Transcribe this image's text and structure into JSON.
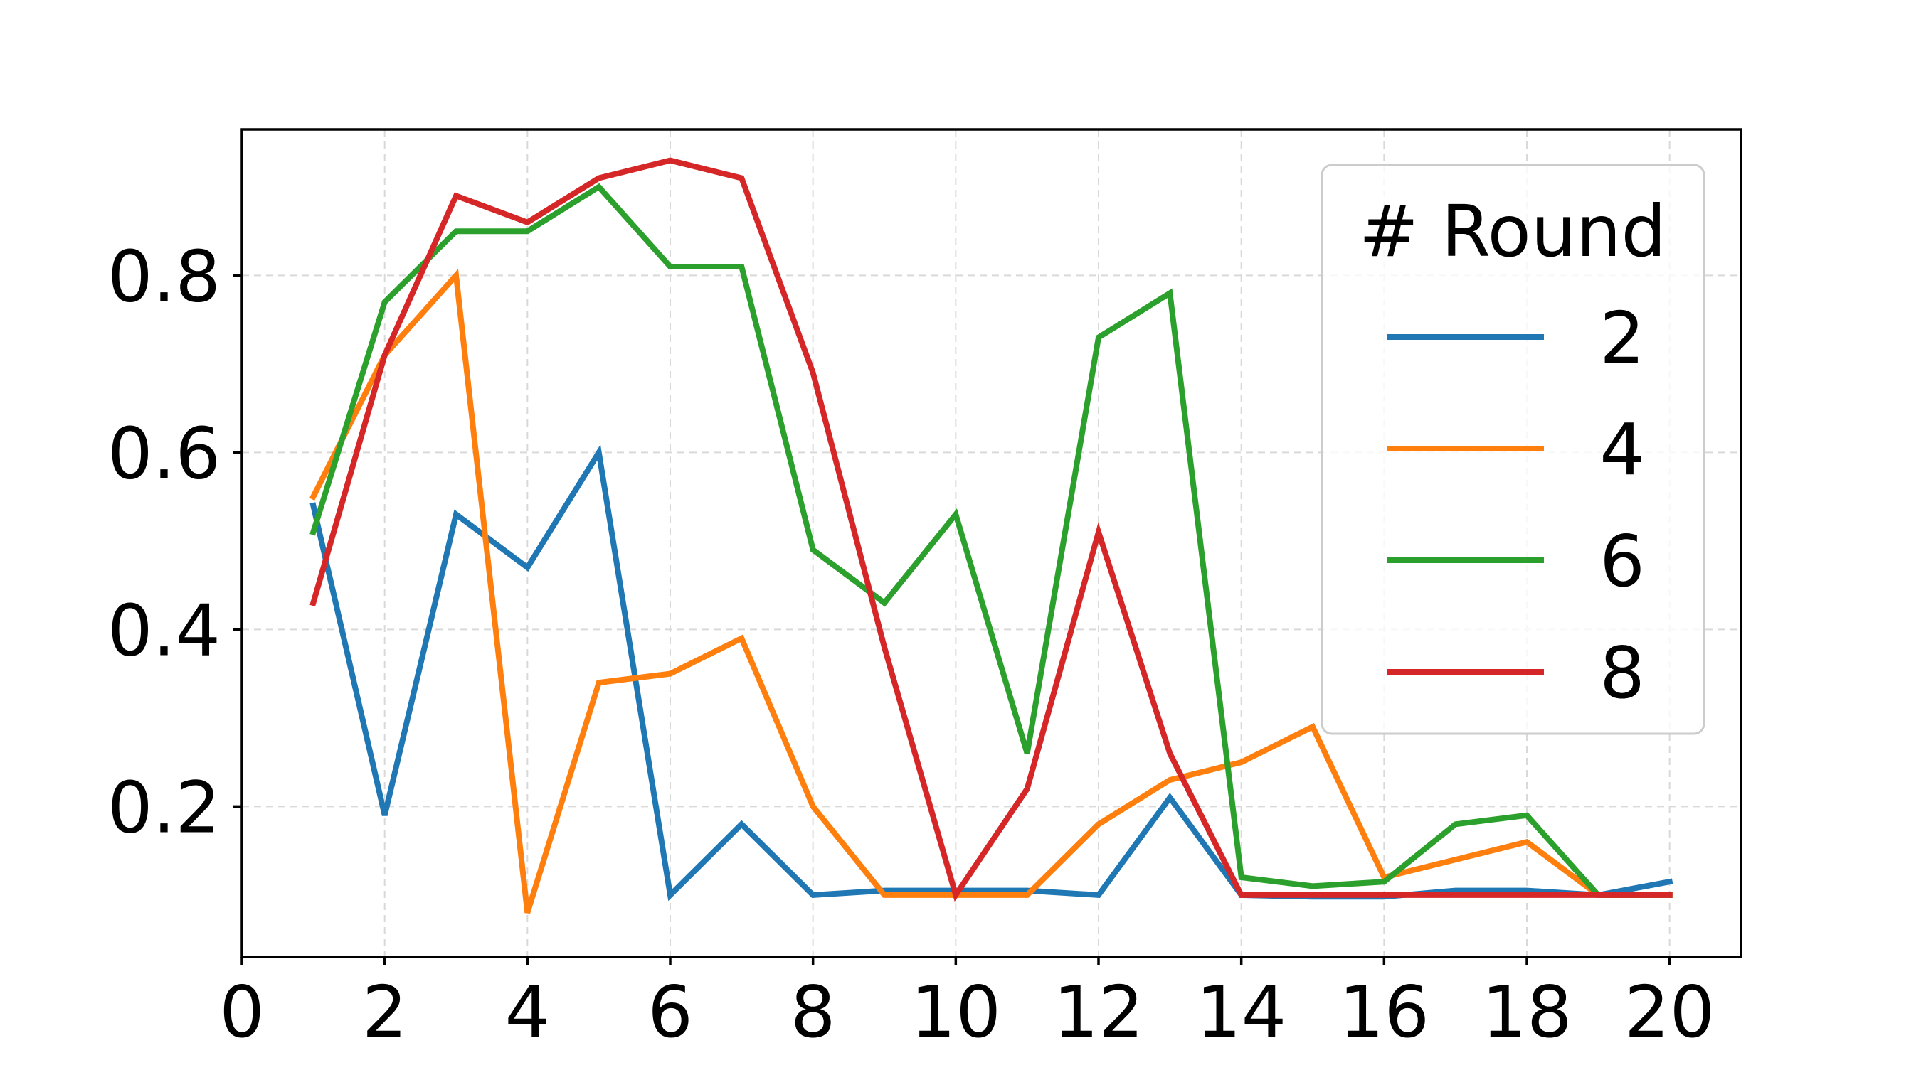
{
  "chart_data": {
    "type": "line",
    "title": "",
    "xlabel": "",
    "ylabel": "",
    "xlim": [
      0,
      21
    ],
    "ylim": [
      0.03,
      0.965
    ],
    "xticks": [
      0,
      2,
      4,
      6,
      8,
      10,
      12,
      14,
      16,
      18,
      20
    ],
    "xtick_labels": [
      "0",
      "2",
      "4",
      "6",
      "8",
      "10",
      "12",
      "14",
      "16",
      "18",
      "20"
    ],
    "yticks": [
      0.2,
      0.4,
      0.6,
      0.8
    ],
    "ytick_labels": [
      "0.2",
      "0.4",
      "0.6",
      "0.8"
    ],
    "grid": true,
    "legend": {
      "title": "# Round",
      "placement": "upper right"
    },
    "x": [
      1,
      2,
      3,
      4,
      5,
      6,
      7,
      8,
      9,
      10,
      11,
      12,
      13,
      14,
      15,
      16,
      17,
      18,
      19,
      20
    ],
    "series": [
      {
        "name": "2",
        "color": "#1f77b4",
        "values": [
          0.54,
          0.19,
          0.53,
          0.47,
          0.6,
          0.1,
          0.18,
          0.1,
          0.105,
          0.105,
          0.105,
          0.1,
          0.21,
          0.1,
          0.098,
          0.098,
          0.105,
          0.105,
          0.1,
          0.115
        ]
      },
      {
        "name": "4",
        "color": "#ff7f0e",
        "values": [
          0.55,
          0.71,
          0.8,
          0.08,
          0.34,
          0.35,
          0.39,
          0.2,
          0.1,
          0.1,
          0.1,
          0.18,
          0.23,
          0.25,
          0.29,
          0.12,
          0.14,
          0.16,
          0.1,
          0.1
        ]
      },
      {
        "name": "6",
        "color": "#2ca02c",
        "values": [
          0.51,
          0.77,
          0.85,
          0.85,
          0.9,
          0.81,
          0.81,
          0.49,
          0.43,
          0.53,
          0.26,
          0.73,
          0.78,
          0.12,
          0.11,
          0.115,
          0.18,
          0.19,
          0.1,
          0.1
        ]
      },
      {
        "name": "8",
        "color": "#d62728",
        "values": [
          0.43,
          0.71,
          0.89,
          0.86,
          0.91,
          0.93,
          0.91,
          0.69,
          0.38,
          0.1,
          0.22,
          0.51,
          0.26,
          0.1,
          0.1,
          0.1,
          0.1,
          0.1,
          0.1,
          0.1
        ]
      }
    ]
  }
}
